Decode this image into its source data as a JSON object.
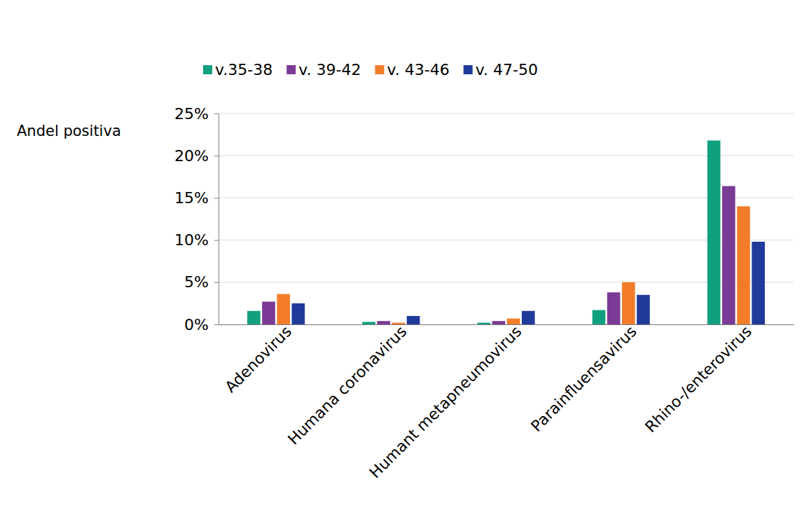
{
  "chart_data": {
    "type": "bar",
    "y_label": "Andel positiva",
    "categories": [
      "Adenovirus",
      "Humana coronavirus",
      "Humant metapneumovirus",
      "Parainfluensavirus",
      "Rhino-/enterovirus"
    ],
    "series": [
      {
        "name": "v.35-38",
        "color": "#10a080",
        "values": [
          1.6,
          0.3,
          0.2,
          1.7,
          21.8
        ]
      },
      {
        "name": "v. 39-42",
        "color": "#7b3a96",
        "values": [
          2.7,
          0.4,
          0.4,
          3.8,
          16.4
        ]
      },
      {
        "name": "v. 43-46",
        "color": "#f27c2a",
        "values": [
          3.6,
          0.2,
          0.7,
          5.0,
          14.0
        ]
      },
      {
        "name": "v. 47-50",
        "color": "#1f3a9b",
        "values": [
          2.5,
          1.0,
          1.6,
          3.5,
          9.8
        ]
      }
    ],
    "ylim": [
      0,
      25
    ],
    "yticks": [
      {
        "value": 0,
        "label": "0%"
      },
      {
        "value": 5,
        "label": "5%"
      },
      {
        "value": 10,
        "label": "10%"
      },
      {
        "value": 15,
        "label": "15%"
      },
      {
        "value": 20,
        "label": "20%"
      },
      {
        "value": 25,
        "label": "25%"
      }
    ],
    "grid": true,
    "legend": "top"
  }
}
